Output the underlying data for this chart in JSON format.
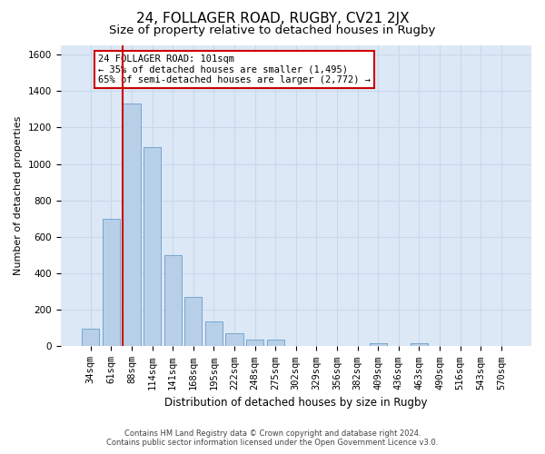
{
  "title": "24, FOLLAGER ROAD, RUGBY, CV21 2JX",
  "subtitle": "Size of property relative to detached houses in Rugby",
  "xlabel": "Distribution of detached houses by size in Rugby",
  "ylabel": "Number of detached properties",
  "footer_line1": "Contains HM Land Registry data © Crown copyright and database right 2024.",
  "footer_line2": "Contains public sector information licensed under the Open Government Licence v3.0.",
  "categories": [
    "34sqm",
    "61sqm",
    "88sqm",
    "114sqm",
    "141sqm",
    "168sqm",
    "195sqm",
    "222sqm",
    "248sqm",
    "275sqm",
    "302sqm",
    "329sqm",
    "356sqm",
    "382sqm",
    "409sqm",
    "436sqm",
    "463sqm",
    "490sqm",
    "516sqm",
    "543sqm",
    "570sqm"
  ],
  "values": [
    95,
    700,
    1330,
    1090,
    500,
    270,
    135,
    70,
    35,
    35,
    0,
    0,
    0,
    0,
    15,
    0,
    15,
    0,
    0,
    0,
    0
  ],
  "bar_color": "#b8cfe8",
  "bar_edge_color": "#6a9ec8",
  "highlight_line_color": "#cc0000",
  "annotation_text": "24 FOLLAGER ROAD: 101sqm\n← 35% of detached houses are smaller (1,495)\n65% of semi-detached houses are larger (2,772) →",
  "annotation_box_color": "#cc0000",
  "ylim": [
    0,
    1650
  ],
  "yticks": [
    0,
    200,
    400,
    600,
    800,
    1000,
    1200,
    1400,
    1600
  ],
  "grid_color": "#c8d8ee",
  "bg_color": "#dce8f5",
  "title_fontsize": 11,
  "subtitle_fontsize": 9.5,
  "axis_label_fontsize": 8,
  "tick_fontsize": 7.5,
  "annotation_fontsize": 7.5
}
